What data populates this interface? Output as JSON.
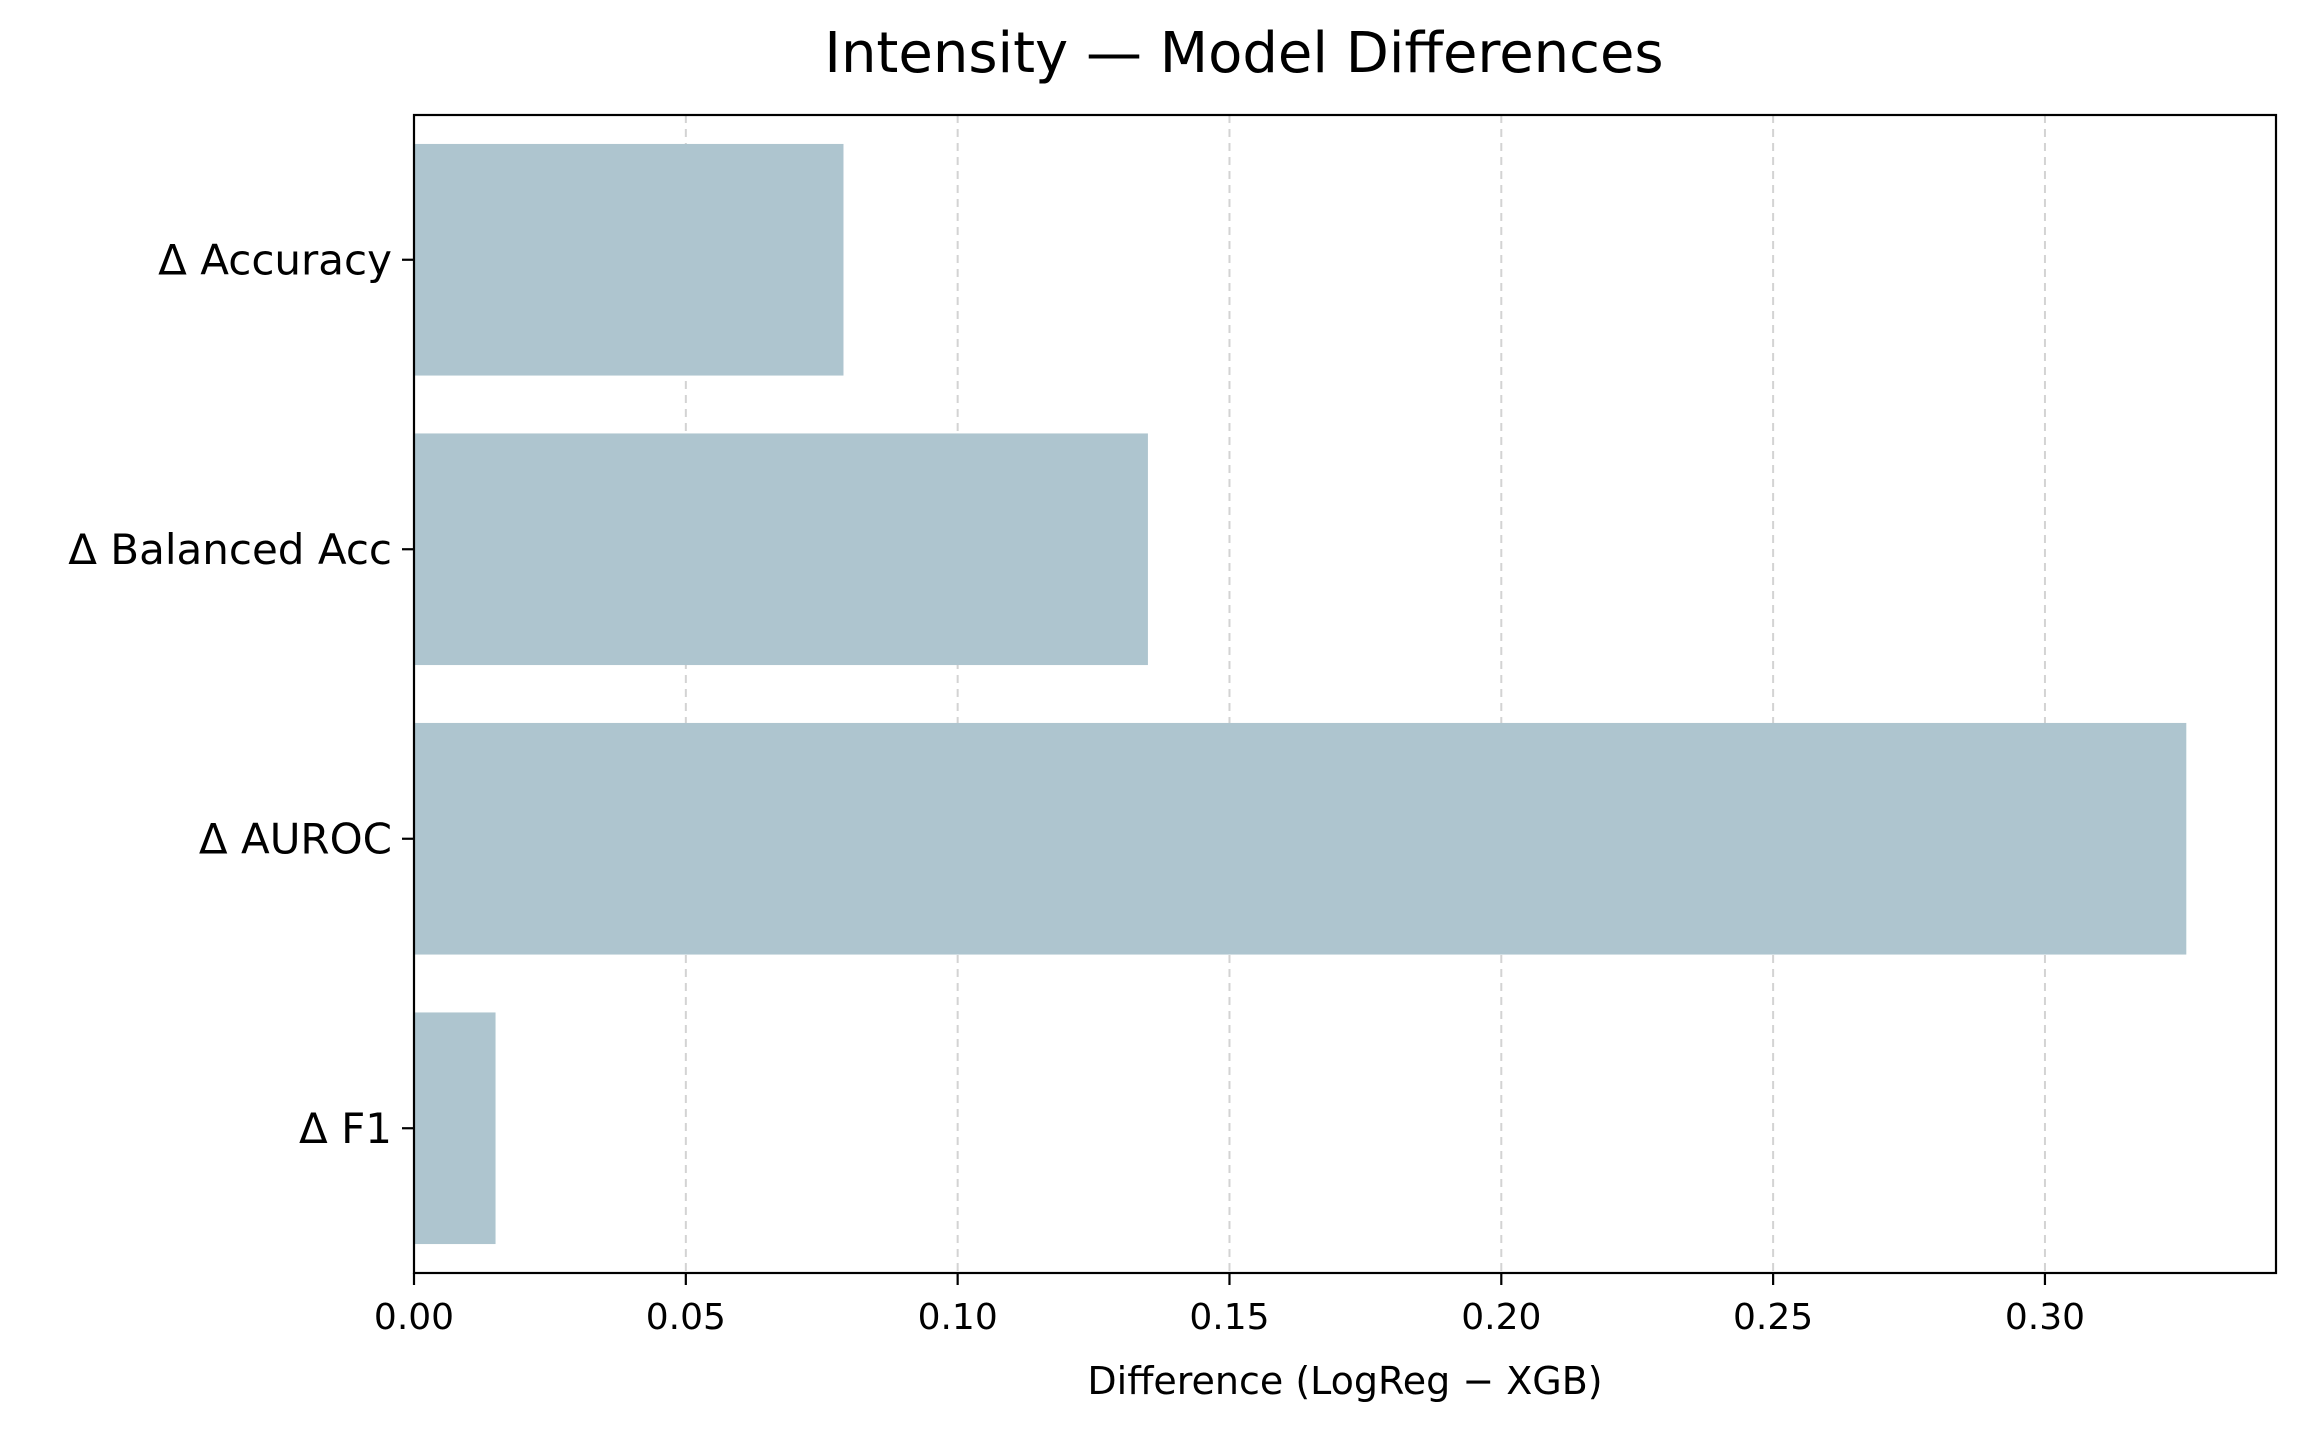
{
  "chart_data": {
    "type": "bar",
    "orientation": "horizontal",
    "title": "Intensity — Model Differences",
    "xlabel": "Difference (LogReg − XGB)",
    "ylabel": "",
    "categories": [
      "Δ Accuracy",
      "Δ Balanced Acc",
      "Δ AUROC",
      "Δ F1"
    ],
    "values": [
      0.079,
      0.135,
      0.326,
      0.015
    ],
    "xlim": [
      0.0,
      0.3425
    ],
    "xticks": [
      0.0,
      0.05,
      0.1,
      0.15,
      0.2,
      0.25,
      0.3
    ],
    "xtick_labels": [
      "0.00",
      "0.05",
      "0.10",
      "0.15",
      "0.20",
      "0.25",
      "0.30"
    ],
    "grid": "vertical dashed",
    "legend": "none",
    "colors": {
      "bar": "#aec5cf",
      "grid": "#d3d3d3",
      "axis": "#000000"
    }
  }
}
